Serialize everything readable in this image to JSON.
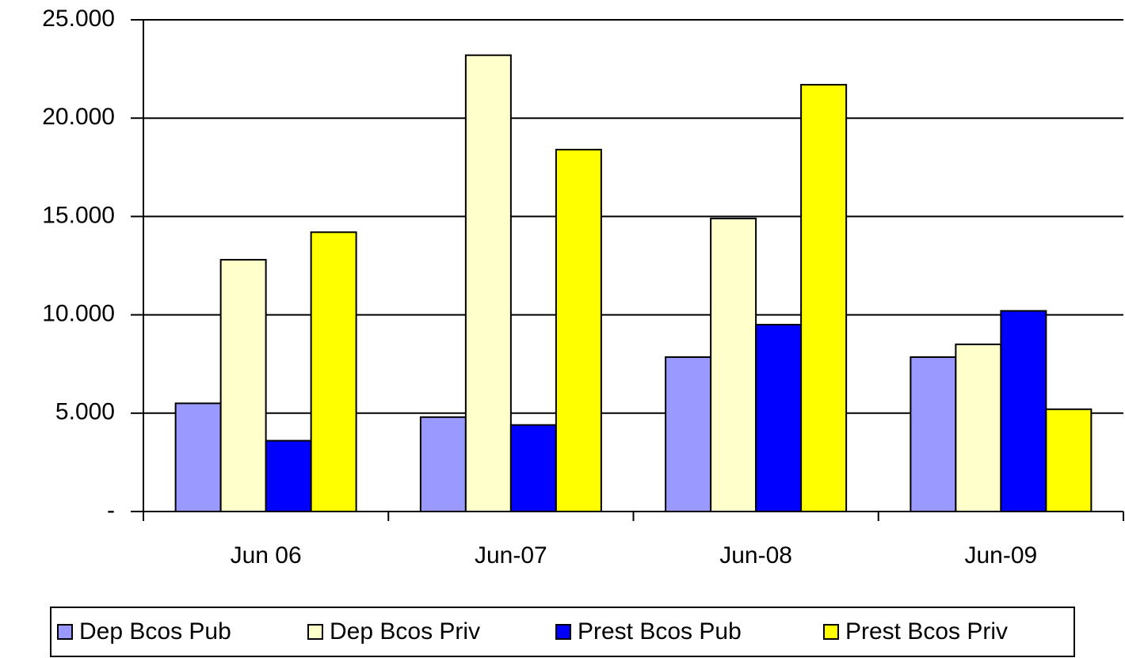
{
  "chart_data": {
    "type": "bar",
    "categories": [
      "Jun 06",
      "Jun-07",
      "Jun-08",
      "Jun-09"
    ],
    "series": [
      {
        "name": "Dep Bcos Pub",
        "color": "#9999ff",
        "values": [
          5500,
          4800,
          7850,
          7850
        ]
      },
      {
        "name": "Dep Bcos Priv",
        "color": "#ffffcc",
        "values": [
          12800,
          23200,
          14900,
          8500
        ]
      },
      {
        "name": "Prest Bcos Pub",
        "color": "#0000ff",
        "values": [
          3600,
          4400,
          9500,
          10200
        ]
      },
      {
        "name": "Prest Bcos Priv",
        "color": "#ffff00",
        "values": [
          14200,
          18400,
          21700,
          5200
        ]
      }
    ],
    "ylim": [
      0,
      25000
    ],
    "yticks": [
      {
        "value": 0,
        "label": "-"
      },
      {
        "value": 5000,
        "label": "5.000"
      },
      {
        "value": 10000,
        "label": "10.000"
      },
      {
        "value": 15000,
        "label": "15.000"
      },
      {
        "value": 20000,
        "label": "20.000"
      },
      {
        "value": 25000,
        "label": "25.000"
      }
    ],
    "grid": true,
    "legend": "bottom"
  }
}
